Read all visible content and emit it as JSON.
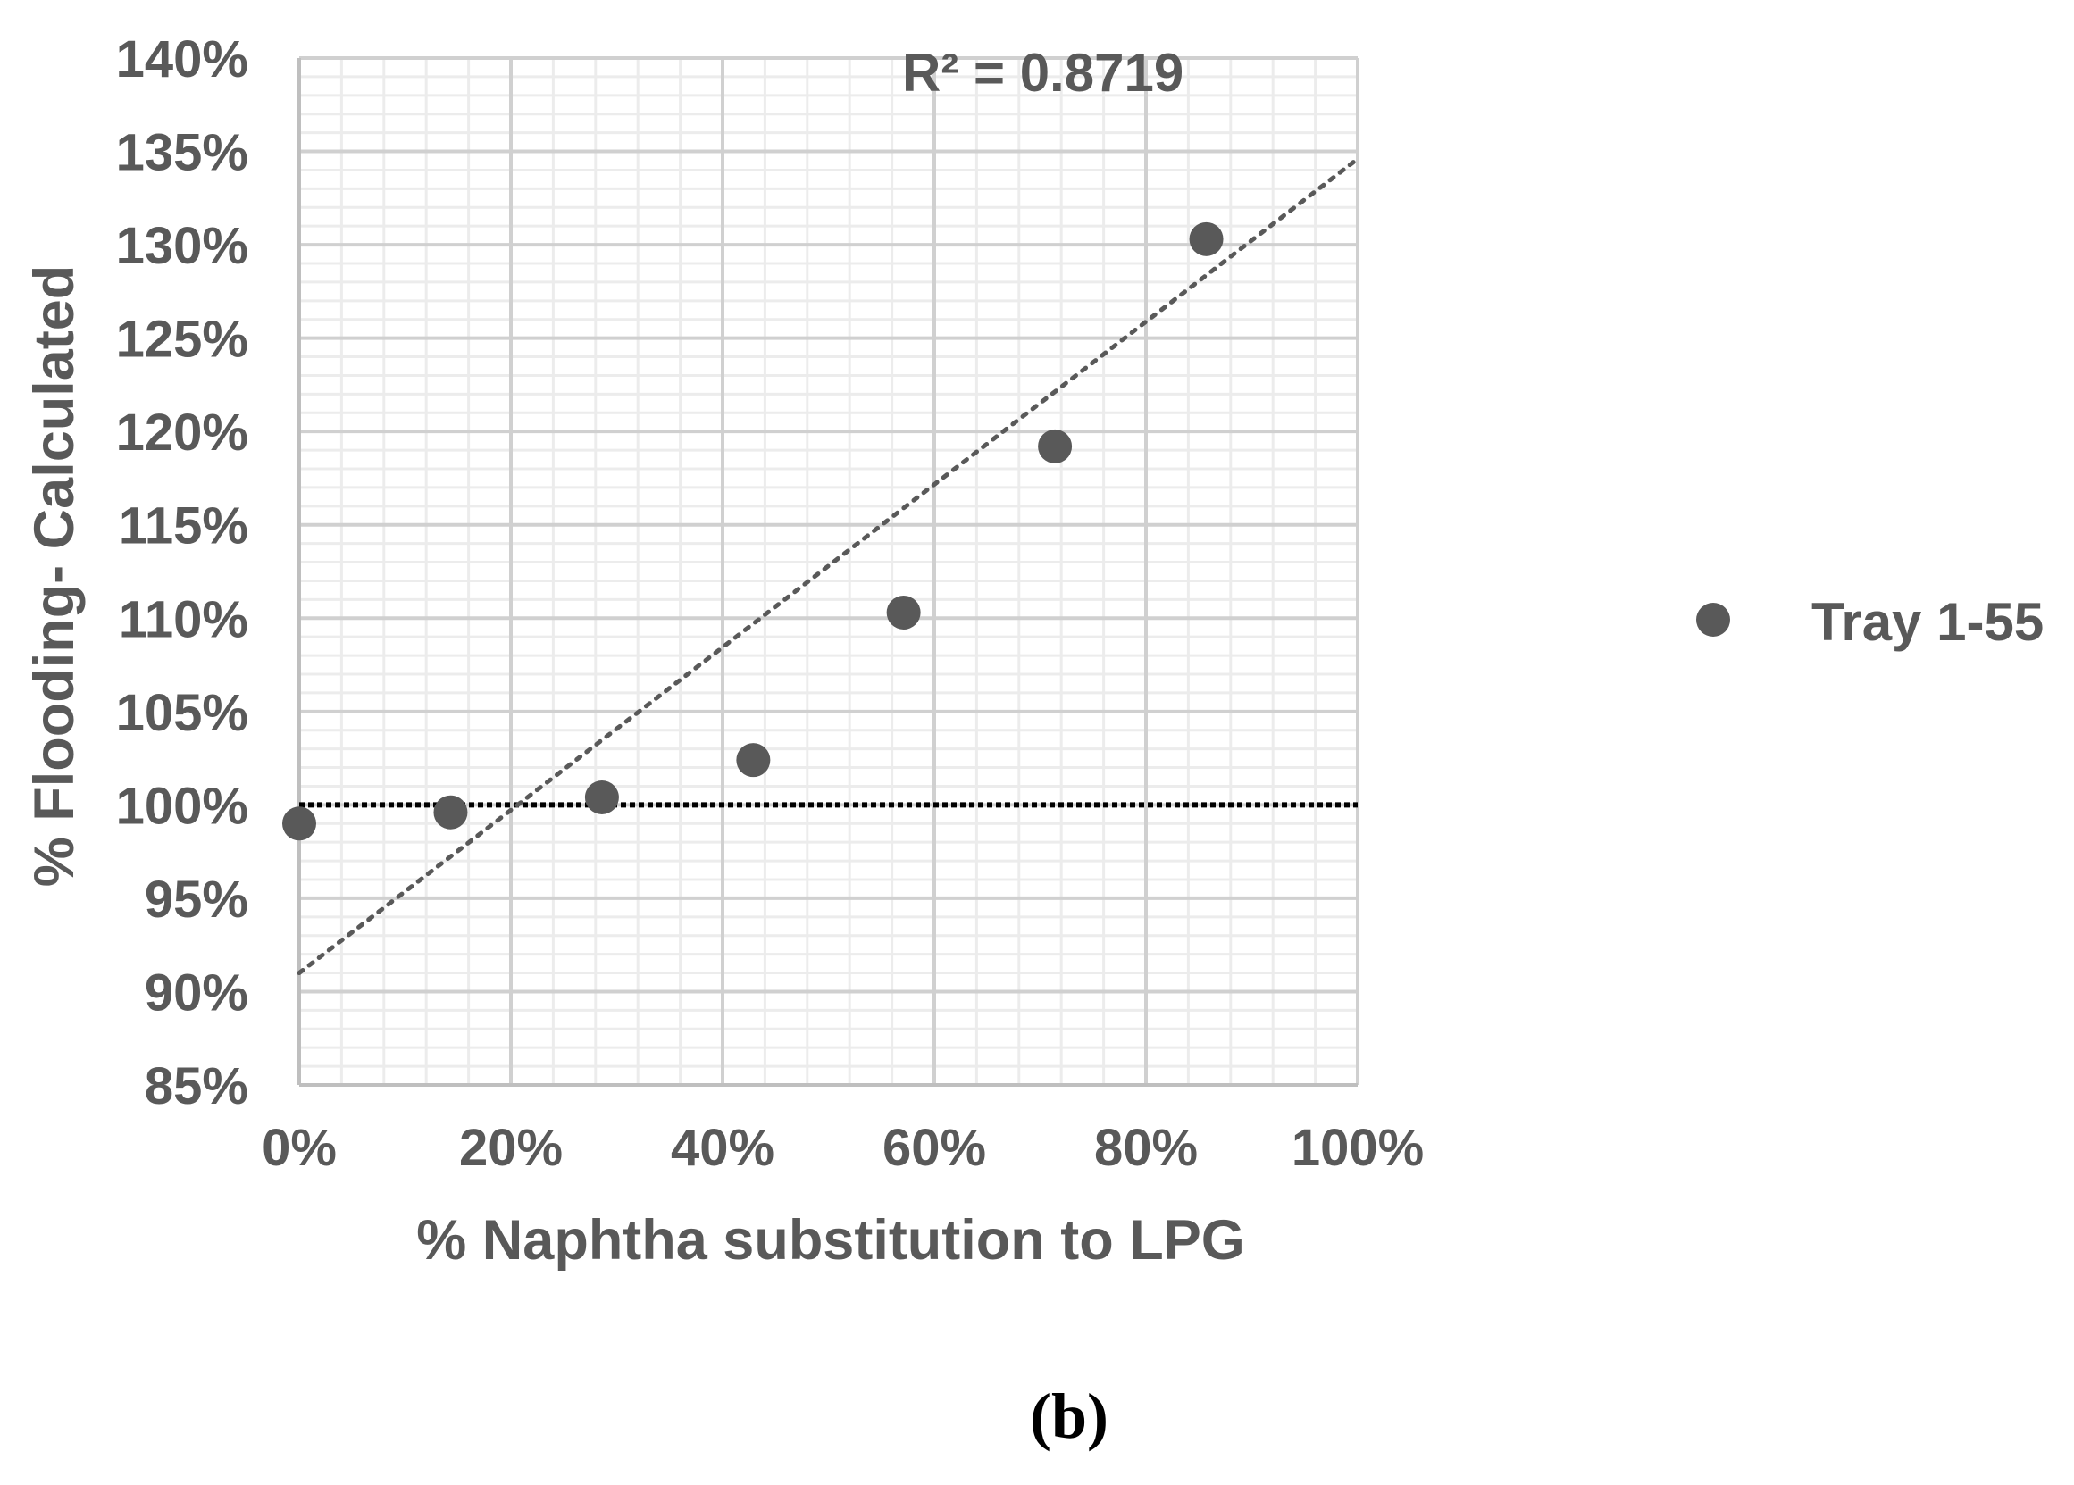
{
  "chart_data": {
    "type": "scatter",
    "xlabel": "% Naphtha substitution to LPG",
    "ylabel": "% Flooding- Calculated",
    "xlim": [
      0,
      100
    ],
    "ylim": [
      85,
      140
    ],
    "x_ticks": [
      "0%",
      "20%",
      "40%",
      "60%",
      "80%",
      "100%"
    ],
    "y_ticks": [
      "85%",
      "90%",
      "95%",
      "100%",
      "105%",
      "110%",
      "115%",
      "120%",
      "125%",
      "130%",
      "135%",
      "140%"
    ],
    "grid": true,
    "legend_position": "right",
    "series": [
      {
        "name": "Tray 1-55",
        "x": [
          0,
          14.3,
          28.6,
          42.9,
          57.1,
          71.4,
          85.7
        ],
        "y": [
          99.0,
          99.6,
          100.4,
          102.4,
          110.3,
          119.2,
          130.3
        ],
        "color": "#595959"
      }
    ],
    "trendline": {
      "style": "dotted",
      "color": "#595959",
      "x": [
        0,
        100
      ],
      "y": [
        91.0,
        134.6
      ],
      "label": "R² = 0.8719"
    },
    "reference_line": {
      "style": "dotted",
      "color": "#000000",
      "y": 100,
      "x": [
        0,
        100
      ]
    }
  },
  "panel_label": "(b)"
}
